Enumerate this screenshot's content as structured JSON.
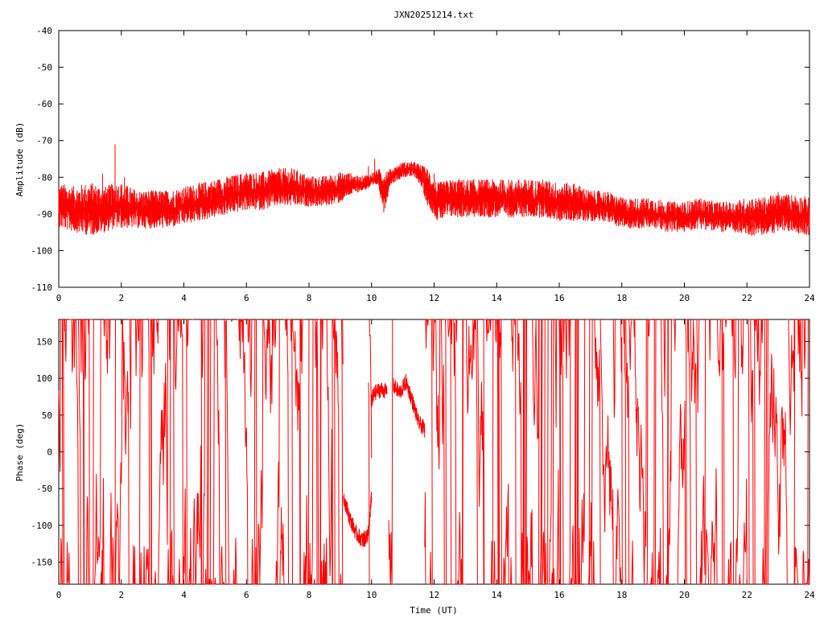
{
  "chart_data": [
    {
      "type": "line",
      "title": "JXN20251214.txt",
      "xlabel": "",
      "ylabel": "Amplitude (dB)",
      "xlim": [
        0,
        24
      ],
      "ylim": [
        -110,
        -40
      ],
      "x_ticks": [
        0,
        2,
        4,
        6,
        8,
        10,
        12,
        14,
        16,
        18,
        20,
        22,
        24
      ],
      "y_ticks": [
        -40,
        -50,
        -60,
        -70,
        -80,
        -90,
        -100,
        -110
      ],
      "grid": false,
      "series_color": "#ff0000",
      "series": [
        {
          "x": [
            0,
            0.5,
            1,
            1.5,
            1.8,
            2,
            2.5,
            3,
            3.5,
            4,
            4.5,
            5,
            5.5,
            6,
            6.5,
            7,
            7.5,
            8,
            8.5,
            9,
            9.3,
            9.6,
            10,
            10.2,
            10.4,
            10.6,
            10.8,
            11,
            11.2,
            11.4,
            11.6,
            11.8,
            11.9,
            12.1,
            12.5,
            13,
            13.5,
            14,
            14.5,
            15,
            15.5,
            16,
            16.5,
            17,
            17.5,
            18,
            18.5,
            19,
            19.5,
            20,
            20.5,
            21,
            21.5,
            22,
            22.5,
            23,
            23.5,
            24
          ],
          "mid": [
            -88,
            -89,
            -89,
            -89,
            -88,
            -88,
            -89,
            -89,
            -89,
            -88,
            -87,
            -86,
            -85,
            -84,
            -84,
            -83,
            -83,
            -84,
            -84,
            -83,
            -82,
            -82,
            -81,
            -80,
            -84,
            -80,
            -79,
            -78,
            -78,
            -78,
            -80,
            -83,
            -84,
            -87,
            -86,
            -86,
            -86,
            -86,
            -86,
            -86,
            -86,
            -87,
            -87,
            -88,
            -88,
            -90,
            -90,
            -90,
            -91,
            -91,
            -90,
            -91,
            -91,
            -91,
            -91,
            -90,
            -90,
            -91
          ],
          "spread": [
            6,
            6,
            7,
            6,
            6,
            6,
            5,
            5,
            5,
            5,
            5,
            5,
            5,
            5,
            5,
            5,
            5,
            4,
            4,
            4,
            3,
            2,
            2,
            2,
            6,
            2,
            2,
            2,
            2,
            2,
            3,
            5,
            5,
            5,
            5,
            5,
            5,
            5,
            5,
            5,
            5,
            5,
            5,
            4,
            4,
            4,
            4,
            4,
            4,
            4,
            4,
            4,
            4,
            5,
            5,
            5,
            5,
            5
          ],
          "spikes": [
            [
              1.8,
              -71
            ],
            [
              1.4,
              -79
            ],
            [
              2.1,
              -80
            ],
            [
              7.5,
              -81
            ],
            [
              9.9,
              -77
            ],
            [
              10.1,
              -75
            ],
            [
              11.5,
              -77
            ],
            [
              12.0,
              -79
            ],
            [
              23.0,
              -84
            ]
          ]
        }
      ]
    },
    {
      "type": "line",
      "title": "",
      "xlabel": "Time (UT)",
      "ylabel": "Phase (deg)",
      "xlim": [
        0,
        24
      ],
      "ylim": [
        -180,
        180
      ],
      "x_ticks": [
        0,
        2,
        4,
        6,
        8,
        10,
        12,
        14,
        16,
        18,
        20,
        22,
        24
      ],
      "y_ticks": [
        150,
        100,
        50,
        0,
        -50,
        -100,
        -150
      ],
      "grid": false,
      "series_color": "#ff0000",
      "series": [
        {
          "wrap_regions": [
            [
              0,
              9.1
            ],
            [
              9.9,
              10.0
            ],
            [
              10.55,
              10.7
            ],
            [
              11.7,
              24
            ]
          ],
          "smooth_segments": [
            {
              "x": [
                9.1,
                9.3,
                9.5,
                9.7,
                9.8,
                9.9,
                10.0
              ],
              "y": [
                -60,
                -90,
                -110,
                -120,
                -118,
                -110,
                -60
              ]
            },
            {
              "x": [
                10.0,
                10.1,
                10.3,
                10.5
              ],
              "y": [
                70,
                80,
                85,
                82
              ]
            },
            {
              "x": [
                10.7,
                10.9,
                11.1,
                11.3,
                11.5,
                11.7
              ],
              "y": [
                90,
                80,
                95,
                70,
                40,
                30
              ]
            }
          ]
        }
      ]
    }
  ]
}
